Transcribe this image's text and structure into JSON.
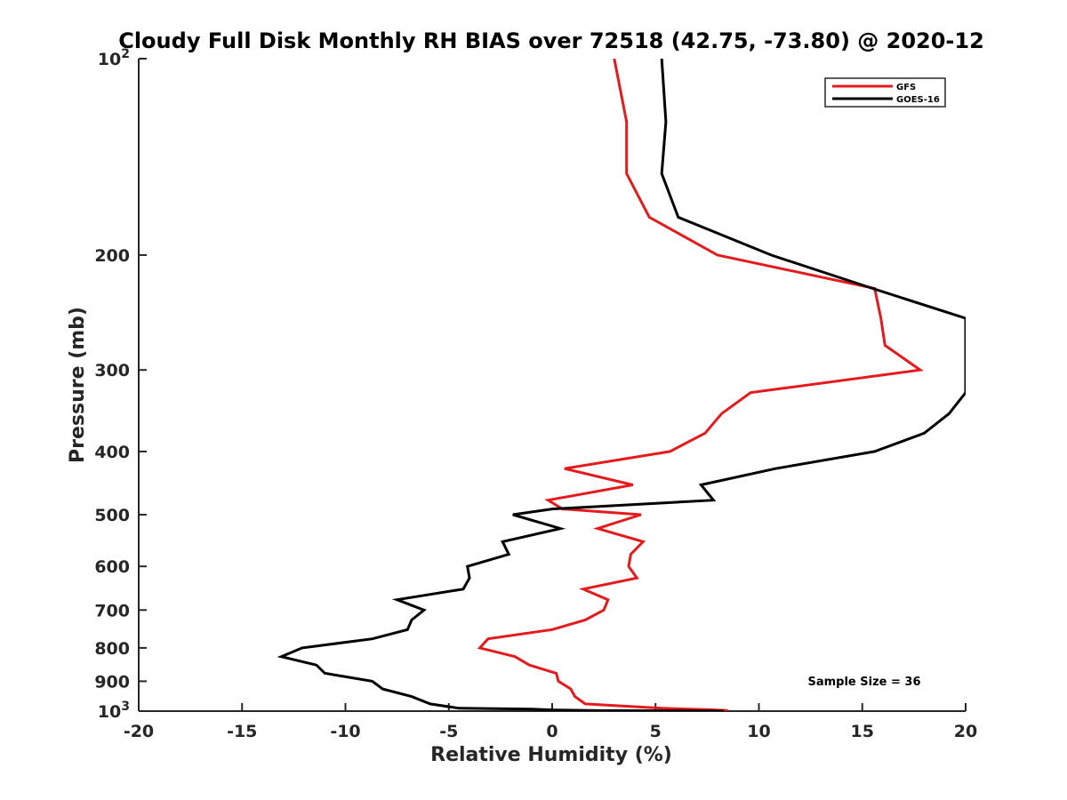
{
  "chart_data": {
    "type": "line",
    "title": "Cloudy Full Disk Monthly RH BIAS over 72518 (42.75, -73.80) @ 2020-12",
    "xlabel": "Relative Humidity (%)",
    "ylabel": "Pressure (mb)",
    "xlim": [
      -20,
      20
    ],
    "ylim": [
      100,
      1000
    ],
    "y_scale": "log",
    "y_reversed": true,
    "grid": false,
    "legend_position": "top-right",
    "x_ticks": [
      -20,
      -15,
      -10,
      -5,
      0,
      5,
      10,
      15,
      20
    ],
    "x_tick_labels": [
      "-20",
      "-15",
      "-10",
      "-5",
      "0",
      "5",
      "10",
      "15",
      "20"
    ],
    "y_ticks": [
      {
        "value": 100,
        "label": "10",
        "sup": "2"
      },
      {
        "value": 200,
        "label": "200",
        "sup": ""
      },
      {
        "value": 300,
        "label": "300",
        "sup": ""
      },
      {
        "value": 400,
        "label": "400",
        "sup": ""
      },
      {
        "value": 500,
        "label": "500",
        "sup": ""
      },
      {
        "value": 600,
        "label": "600",
        "sup": ""
      },
      {
        "value": 700,
        "label": "700",
        "sup": ""
      },
      {
        "value": 800,
        "label": "800",
        "sup": ""
      },
      {
        "value": 900,
        "label": "900",
        "sup": ""
      },
      {
        "value": 1000,
        "label": "10",
        "sup": "3"
      }
    ],
    "annotation": "Sample Size = 36",
    "series": [
      {
        "name": "GFS",
        "color": "#e41a1c",
        "points": [
          [
            3.0,
            100
          ],
          [
            3.6,
            125
          ],
          [
            3.6,
            150
          ],
          [
            4.7,
            175
          ],
          [
            8.0,
            200
          ],
          [
            15.6,
            225
          ],
          [
            15.9,
            250
          ],
          [
            16.1,
            275
          ],
          [
            17.8,
            300
          ],
          [
            9.6,
            325
          ],
          [
            8.2,
            350
          ],
          [
            7.4,
            375
          ],
          [
            5.7,
            400
          ],
          [
            0.6,
            425
          ],
          [
            3.9,
            450
          ],
          [
            -0.2,
            475
          ],
          [
            0.5,
            490
          ],
          [
            4.3,
            500
          ],
          [
            2.2,
            525
          ],
          [
            4.4,
            550
          ],
          [
            3.8,
            575
          ],
          [
            3.7,
            600
          ],
          [
            4.1,
            625
          ],
          [
            1.5,
            650
          ],
          [
            2.7,
            675
          ],
          [
            2.5,
            700
          ],
          [
            1.6,
            725
          ],
          [
            0.0,
            750
          ],
          [
            -3.1,
            775
          ],
          [
            -3.5,
            800
          ],
          [
            -1.8,
            825
          ],
          [
            -1.1,
            850
          ],
          [
            0.2,
            875
          ],
          [
            0.3,
            900
          ],
          [
            0.9,
            925
          ],
          [
            1.1,
            950
          ],
          [
            1.6,
            975
          ],
          [
            5.3,
            990
          ],
          [
            7.6,
            995
          ],
          [
            8.5,
            998
          ],
          [
            7.3,
            1000
          ]
        ]
      },
      {
        "name": "GOES-16",
        "color": "#000000",
        "points": [
          [
            5.3,
            100
          ],
          [
            5.5,
            125
          ],
          [
            5.3,
            150
          ],
          [
            6.1,
            175
          ],
          [
            10.6,
            200
          ],
          [
            15.5,
            225
          ],
          [
            20.0,
            250
          ],
          [
            20.0,
            325
          ],
          [
            19.2,
            350
          ],
          [
            18.0,
            375
          ],
          [
            15.6,
            400
          ],
          [
            10.8,
            425
          ],
          [
            7.2,
            450
          ],
          [
            7.8,
            475
          ],
          [
            0.0,
            490
          ],
          [
            -1.9,
            500
          ],
          [
            0.4,
            525
          ],
          [
            -2.4,
            550
          ],
          [
            -2.1,
            575
          ],
          [
            -4.1,
            600
          ],
          [
            -4.0,
            625
          ],
          [
            -4.3,
            650
          ],
          [
            -7.5,
            675
          ],
          [
            -6.2,
            700
          ],
          [
            -6.8,
            725
          ],
          [
            -7.0,
            750
          ],
          [
            -8.7,
            775
          ],
          [
            -12.1,
            800
          ],
          [
            -13.1,
            825
          ],
          [
            -11.4,
            850
          ],
          [
            -11.0,
            875
          ],
          [
            -8.7,
            900
          ],
          [
            -8.2,
            925
          ],
          [
            -6.8,
            950
          ],
          [
            -5.9,
            975
          ],
          [
            -4.5,
            990
          ],
          [
            -1.0,
            993
          ],
          [
            0.1,
            996
          ],
          [
            2.2,
            998
          ],
          [
            8.3,
            1000
          ]
        ]
      }
    ]
  }
}
